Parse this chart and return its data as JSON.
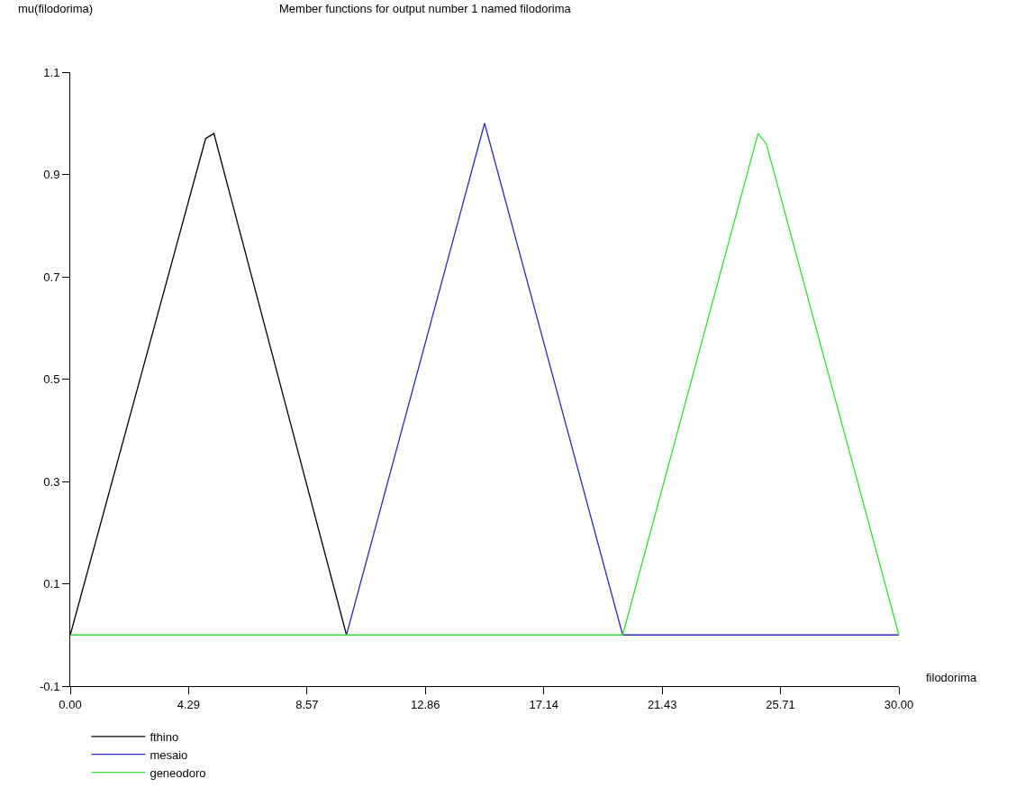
{
  "chart_data": {
    "type": "line",
    "title": "Member functions for output number 1 named filodorima",
    "xlabel": "filodorima",
    "ylabel": "mu(filodorima)",
    "xlim": [
      0,
      30
    ],
    "ylim": [
      -0.1,
      1.1
    ],
    "xticks": [
      {
        "value": 0,
        "label": "0.00"
      },
      {
        "value": 4.2857,
        "label": "4.29"
      },
      {
        "value": 8.5714,
        "label": "8.57"
      },
      {
        "value": 12.857,
        "label": "12.86"
      },
      {
        "value": 17.143,
        "label": "17.14"
      },
      {
        "value": 21.429,
        "label": "21.43"
      },
      {
        "value": 25.714,
        "label": "25.71"
      },
      {
        "value": 30,
        "label": "30.00"
      }
    ],
    "yticks": [
      -0.1,
      0.1,
      0.3,
      0.5,
      0.7,
      0.9,
      1.1
    ],
    "legend": "bottom left",
    "marker": "none",
    "line_style": "solid",
    "series": [
      {
        "name": "fthino",
        "color": "#000000",
        "x": [
          0,
          4.9,
          5.2,
          10
        ],
        "values": [
          0,
          0.97,
          0.98,
          0
        ]
      },
      {
        "name": "mesaio",
        "color": "#2b2bb8",
        "x": [
          10,
          15,
          20,
          30
        ],
        "values": [
          0,
          1,
          0,
          0
        ]
      },
      {
        "name": "geneodoro",
        "color": "#33dd33",
        "x": [
          0,
          20,
          24.9,
          25.2,
          30
        ],
        "values": [
          0,
          0,
          0.98,
          0.96,
          0
        ]
      }
    ]
  }
}
